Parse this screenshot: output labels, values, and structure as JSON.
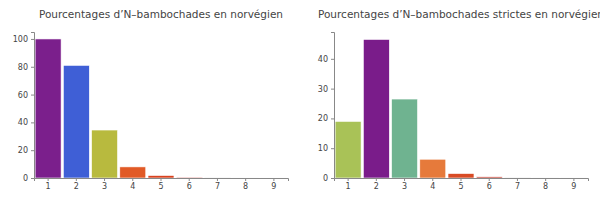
{
  "chart_data": [
    {
      "type": "bar",
      "title": "Pourcentages d’N–bambochades en norvégien",
      "categories": [
        "1",
        "2",
        "3",
        "4",
        "5",
        "6",
        "7",
        "8",
        "9"
      ],
      "values": [
        100,
        81,
        34.5,
        8,
        1.8,
        0.6,
        0.15,
        0.03,
        0.01
      ],
      "colors": [
        "#7b1f8c",
        "#3f5fd6",
        "#b8ba3e",
        "#e15a26",
        "#d8421f",
        "#c9322a",
        "#b8b8b8",
        "#b8b8b8",
        "#b8b8b8"
      ],
      "ylim": [
        0,
        105
      ],
      "yticks": [
        0,
        20,
        40,
        60,
        80,
        100
      ]
    },
    {
      "type": "bar",
      "title": "Pourcentages d’N–bambochades strictes en norvégien",
      "categories": [
        "1",
        "2",
        "3",
        "4",
        "5",
        "6",
        "7",
        "8",
        "9"
      ],
      "values": [
        19,
        46.5,
        26.5,
        6.3,
        1.5,
        0.4,
        0.1,
        0.02,
        0.01
      ],
      "colors": [
        "#a9c257",
        "#7a1c8a",
        "#6fb390",
        "#e67a3b",
        "#d84b25",
        "#c03325",
        "#b8b8b8",
        "#b8b8b8",
        "#b8b8b8"
      ],
      "ylim": [
        0,
        49
      ],
      "yticks": [
        0,
        10,
        20,
        30,
        40
      ]
    }
  ]
}
